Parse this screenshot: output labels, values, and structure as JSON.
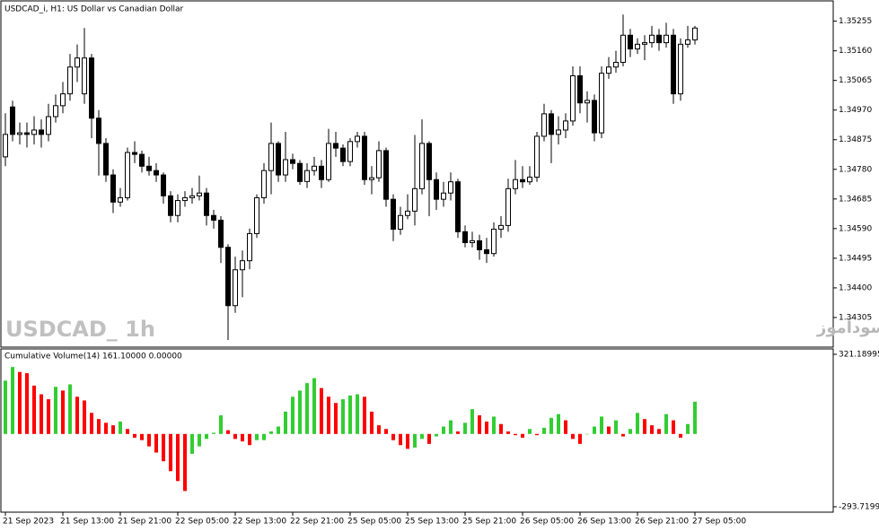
{
  "chart_data": [
    {
      "type": "candlestick",
      "title": "USDCAD_i, H1:  US Dollar vs Canadian Dollar",
      "watermark": "USDCAD_ 1h",
      "annotation": "انتشار در سایت سودآموز",
      "categories": [
        "21 Sep 2023",
        null,
        null,
        null,
        null,
        null,
        null,
        null,
        "21 Sep 13:00",
        null,
        null,
        null,
        null,
        null,
        null,
        null,
        "21 Sep 21:00",
        null,
        null,
        null,
        null,
        null,
        null,
        null,
        "22 Sep 05:00",
        null,
        null,
        null,
        null,
        null,
        null,
        null,
        "22 Sep 13:00",
        null,
        null,
        null,
        null,
        null,
        null,
        null,
        "22 Sep 21:00",
        null,
        null,
        null,
        null,
        null,
        null,
        null,
        "25 Sep 05:00",
        null,
        null,
        null,
        null,
        null,
        null,
        null,
        "25 Sep 13:00",
        null,
        null,
        null,
        null,
        null,
        null,
        null,
        "25 Sep 21:00",
        null,
        null,
        null,
        null,
        null,
        null,
        null,
        "26 Sep 05:00",
        null,
        null,
        null,
        null,
        null,
        null,
        null,
        "26 Sep 13:00",
        null,
        null,
        null,
        null,
        null,
        null,
        null,
        "26 Sep 21:00",
        null,
        null,
        null,
        null,
        null,
        null,
        null,
        "27 Sep 05:00"
      ],
      "open": [
        1.3482,
        1.3498,
        1.34892,
        1.34897,
        1.34892,
        1.34906,
        1.34892,
        1.34949,
        1.34984,
        1.35022,
        1.35108,
        1.35022,
        1.35137,
        1.34944,
        1.34863,
        1.34762,
        1.34675,
        1.34689,
        1.34834,
        1.34828,
        1.3479,
        1.34776,
        1.34762,
        1.34695,
        1.34632,
        1.3468,
        1.34689,
        1.34695,
        1.34704,
        1.34632,
        1.34617,
        1.3453,
        1.34343,
        1.34458,
        1.34487,
        1.34574,
        1.34689,
        1.34776,
        1.34863,
        1.34762,
        1.34811,
        1.34799,
        1.34741,
        1.34776,
        1.3479,
        1.34747,
        1.34863,
        1.34848,
        1.34805,
        1.34869,
        1.34886,
        1.34747,
        1.34753,
        1.3484,
        1.34684,
        1.34588,
        1.34632,
        1.34646,
        1.34718,
        1.34863,
        1.34747,
        1.34684,
        1.34704,
        1.3474,
        1.3458,
        1.34545,
        1.34551,
        1.34522,
        1.3451,
        1.34588,
        1.346,
        1.34718,
        1.34747,
        1.3474,
        1.34755,
        1.34886,
        1.34958,
        1.34892,
        1.34906,
        1.34935,
        1.3508,
        1.34993,
        1.35001,
        1.34897,
        1.35088,
        1.35108,
        1.35123,
        1.3521,
        1.35166,
        1.35181,
        1.35186,
        1.3521,
        1.35186,
        1.3521,
        1.35022,
        1.35181,
        1.35195
      ],
      "high": [
        1.3496,
        1.35,
        1.3493,
        1.3493,
        1.3495,
        1.3494,
        1.3499,
        1.3502,
        1.3506,
        1.3515,
        1.3518,
        1.35233,
        1.3515,
        1.3497,
        1.3488,
        1.3478,
        1.3472,
        1.3485,
        1.3487,
        1.3484,
        1.3482,
        1.348,
        1.3477,
        1.3471,
        1.347,
        1.3471,
        1.3472,
        1.3476,
        1.3472,
        1.3465,
        1.3463,
        1.3454,
        1.345,
        1.3452,
        1.3459,
        1.347,
        1.348,
        1.3493,
        1.3487,
        1.349,
        1.3483,
        1.3481,
        1.348,
        1.3482,
        1.3481,
        1.3491,
        1.349,
        1.3486,
        1.3488,
        1.349,
        1.349,
        1.3479,
        1.3487,
        1.3485,
        1.347,
        1.3466,
        1.347,
        1.3489,
        1.3494,
        1.3487,
        1.3477,
        1.3474,
        1.3477,
        1.3475,
        1.346,
        1.3458,
        1.3457,
        1.3456,
        1.3461,
        1.3463,
        1.3475,
        1.3481,
        1.3479,
        1.3479,
        1.349,
        1.3499,
        1.3497,
        1.3495,
        1.3496,
        1.3511,
        1.3511,
        1.3503,
        1.3502,
        1.3511,
        1.3514,
        1.3516,
        1.35276,
        1.3523,
        1.352,
        1.3521,
        1.3524,
        1.3523,
        1.3525,
        1.3523,
        1.352,
        1.3524,
        1.3524
      ],
      "low": [
        1.3479,
        1.3487,
        1.3486,
        1.3485,
        1.3486,
        1.3485,
        1.3487,
        1.3493,
        1.3496,
        1.35,
        1.3506,
        1.3499,
        1.3488,
        1.3476,
        1.3474,
        1.3464,
        1.3466,
        1.3468,
        1.348,
        1.3477,
        1.3476,
        1.3474,
        1.3467,
        1.3461,
        1.3461,
        1.3466,
        1.3467,
        1.3468,
        1.346,
        1.3459,
        1.3448,
        1.34233,
        1.3432,
        1.3437,
        1.3446,
        1.3456,
        1.3467,
        1.347,
        1.3474,
        1.3474,
        1.3478,
        1.3473,
        1.3472,
        1.3476,
        1.3472,
        1.3474,
        1.3482,
        1.3479,
        1.3479,
        1.3485,
        1.3473,
        1.347,
        1.3474,
        1.3466,
        1.3455,
        1.3457,
        1.3462,
        1.346,
        1.347,
        1.3463,
        1.3465,
        1.3466,
        1.3468,
        1.3456,
        1.3453,
        1.3453,
        1.3449,
        1.3448,
        1.345,
        1.3456,
        1.3458,
        1.347,
        1.3472,
        1.3473,
        1.3474,
        1.3487,
        1.348,
        1.3486,
        1.3488,
        1.3492,
        1.3496,
        1.3493,
        1.3487,
        1.3488,
        1.3507,
        1.3509,
        1.3511,
        1.3514,
        1.3515,
        1.3513,
        1.3517,
        1.3516,
        1.3517,
        1.3499,
        1.35,
        1.3517,
        1.3518
      ],
      "close": [
        1.34892,
        1.34892,
        1.34897,
        1.34892,
        1.34906,
        1.34892,
        1.34949,
        1.34984,
        1.35022,
        1.35108,
        1.35137,
        1.35137,
        1.34944,
        1.34863,
        1.34762,
        1.34675,
        1.34689,
        1.34834,
        1.34828,
        1.3479,
        1.34776,
        1.34762,
        1.34695,
        1.34632,
        1.3468,
        1.34689,
        1.34695,
        1.34704,
        1.34632,
        1.34617,
        1.3453,
        1.34343,
        1.34458,
        1.34487,
        1.34574,
        1.34689,
        1.34776,
        1.34863,
        1.34762,
        1.34811,
        1.34799,
        1.34741,
        1.34776,
        1.3479,
        1.34747,
        1.34863,
        1.34848,
        1.34805,
        1.34869,
        1.34886,
        1.34747,
        1.34753,
        1.3484,
        1.34684,
        1.34588,
        1.34632,
        1.34646,
        1.34718,
        1.34863,
        1.34747,
        1.34684,
        1.34704,
        1.3474,
        1.3458,
        1.34545,
        1.34551,
        1.34522,
        1.3451,
        1.34588,
        1.346,
        1.34718,
        1.34747,
        1.3474,
        1.34755,
        1.34886,
        1.34958,
        1.34892,
        1.34906,
        1.34935,
        1.3508,
        1.34993,
        1.35001,
        1.34897,
        1.35088,
        1.35108,
        1.35123,
        1.3521,
        1.35166,
        1.35181,
        1.35186,
        1.3521,
        1.35186,
        1.3521,
        1.35022,
        1.35181,
        1.35195,
        1.35233
      ],
      "ylim": [
        1.3421,
        1.3532
      ],
      "yticks": [
        1.35255,
        {
          "value": 1.3516,
          "label": "1.35160"
        },
        1.35065,
        {
          "value": 1.3497,
          "label": "1.34970"
        },
        1.34875,
        {
          "value": 1.3478,
          "label": "1.34780"
        },
        1.34685,
        {
          "value": 1.3459,
          "label": "1.34590"
        },
        1.34495,
        {
          "value": 1.344,
          "label": "1.34400"
        },
        1.34305
      ],
      "color_up": "#ffffff",
      "color_down": "#000000"
    },
    {
      "type": "bar",
      "title": "Cumulative Volume(14) 161.10000 0.00000",
      "values": [
        215,
        270,
        250,
        245,
        195,
        160,
        140,
        190,
        175,
        200,
        150,
        135,
        85,
        60,
        45,
        35,
        50,
        20,
        -15,
        -25,
        -50,
        -75,
        -110,
        -150,
        -190,
        -230,
        -80,
        -50,
        -20,
        5,
        75,
        15,
        -20,
        -30,
        -45,
        -25,
        -25,
        10,
        30,
        90,
        150,
        175,
        205,
        225,
        185,
        150,
        125,
        140,
        155,
        160,
        150,
        90,
        35,
        20,
        -25,
        -45,
        -60,
        -55,
        -20,
        -40,
        -10,
        30,
        55,
        10,
        45,
        100,
        75,
        50,
        70,
        40,
        10,
        -5,
        -15,
        20,
        -5,
        25,
        65,
        80,
        55,
        -20,
        -40,
        0,
        30,
        70,
        30,
        55,
        -10,
        20,
        85,
        60,
        35,
        20,
        80,
        55,
        -15,
        40,
        130
      ],
      "ylim": [
        -315.4,
        342.9
      ],
      "yticks": [
        -293.71995,
        321.18995
      ],
      "color_up": "#32cd32",
      "color_down": "#ff0000"
    }
  ]
}
